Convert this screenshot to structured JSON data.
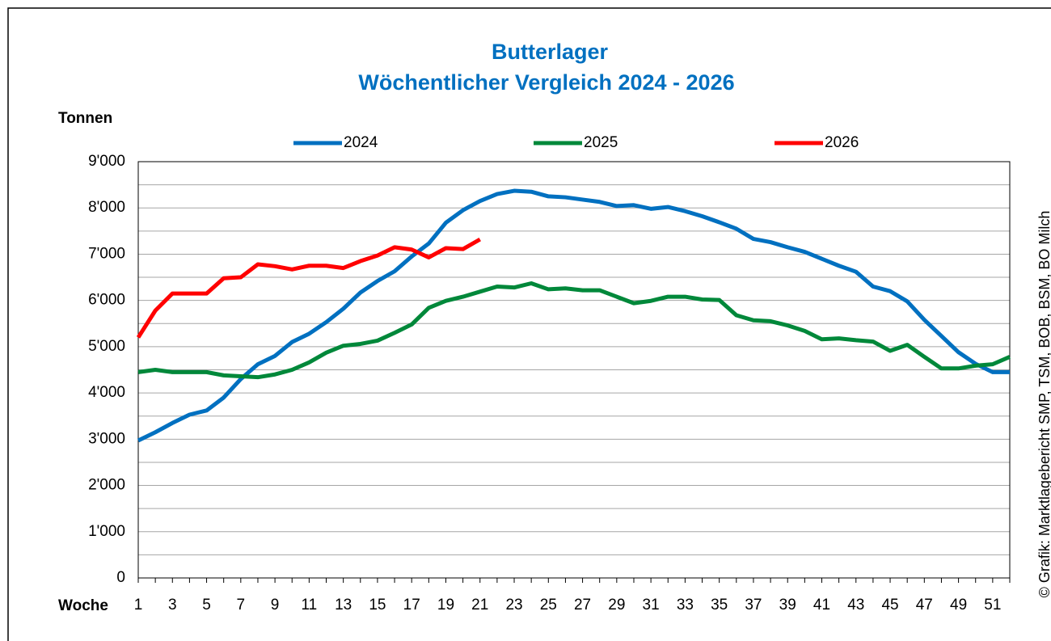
{
  "chart_data": {
    "type": "line",
    "title": "Butterlager",
    "subtitle": "Wöchentlicher Vergleich 2024 - 2026",
    "y_label": "Tonnen",
    "x_label": "Woche",
    "source": "© Grafik: Marktlagebericht SMP, TSM, BOB, BSM, BO Milch",
    "x": [
      1,
      2,
      3,
      4,
      5,
      6,
      7,
      8,
      9,
      10,
      11,
      12,
      13,
      14,
      15,
      16,
      17,
      18,
      19,
      20,
      21,
      22,
      23,
      24,
      25,
      26,
      27,
      28,
      29,
      30,
      31,
      32,
      33,
      34,
      35,
      36,
      37,
      38,
      39,
      40,
      41,
      42,
      43,
      44,
      45,
      46,
      47,
      48,
      49,
      50,
      51,
      52
    ],
    "xlim": [
      1,
      52
    ],
    "xticks": [
      1,
      3,
      5,
      7,
      9,
      11,
      13,
      15,
      17,
      19,
      21,
      23,
      25,
      27,
      29,
      31,
      33,
      35,
      37,
      39,
      41,
      43,
      45,
      47,
      49,
      51
    ],
    "ylim": [
      0,
      9000
    ],
    "yticks": [
      0,
      {
        "value": 1000,
        "label": "1'000"
      },
      {
        "value": 2000,
        "label": "2'000"
      },
      {
        "value": 3000,
        "label": "3'000"
      },
      {
        "value": 4000,
        "label": "4'000"
      },
      {
        "value": 5000,
        "label": "5'000"
      },
      {
        "value": 6000,
        "label": "6'000"
      },
      {
        "value": 7000,
        "label": "7'000"
      },
      {
        "value": 8000,
        "label": "8'000"
      },
      {
        "value": 9000,
        "label": "9'000"
      }
    ],
    "minor_yticks": [
      500,
      1500,
      2500,
      3500,
      4500,
      5500,
      6500,
      7500,
      8500
    ],
    "grid": true,
    "legend": "top",
    "series": [
      {
        "name": "2024",
        "color": "#0070c0",
        "values": [
          2970,
          3150,
          3350,
          3530,
          3620,
          3900,
          4300,
          4620,
          4800,
          5100,
          5280,
          5530,
          5820,
          6170,
          6420,
          6630,
          6950,
          7230,
          7680,
          7950,
          8150,
          8300,
          8370,
          8350,
          8250,
          8230,
          8180,
          8130,
          8040,
          8060,
          7980,
          8020,
          7930,
          7820,
          7690,
          7550,
          7330,
          7260,
          7150,
          7050,
          6900,
          6750,
          6620,
          6300,
          6200,
          5980,
          5580,
          5230,
          4880,
          4630,
          4450,
          4450
        ]
      },
      {
        "name": "2025",
        "color": "#00883a",
        "values": [
          4450,
          4500,
          4450,
          4450,
          4450,
          4380,
          4360,
          4340,
          4400,
          4500,
          4660,
          4870,
          5020,
          5060,
          5130,
          5300,
          5480,
          5840,
          5990,
          6080,
          6190,
          6300,
          6280,
          6370,
          6240,
          6260,
          6220,
          6220,
          6080,
          5940,
          5990,
          6080,
          6080,
          6020,
          6010,
          5680,
          5570,
          5550,
          5460,
          5340,
          5160,
          5180,
          5140,
          5110,
          4910,
          5040,
          4780,
          4530,
          4530,
          4590,
          4620,
          4780
        ]
      },
      {
        "name": "2026",
        "color": "#ff0000",
        "values": [
          5200,
          5780,
          6150,
          6150,
          6150,
          6480,
          6500,
          6780,
          6740,
          6670,
          6750,
          6750,
          6700,
          6850,
          6970,
          7150,
          7100,
          6930,
          7130,
          7110,
          7320,
          null,
          null,
          null,
          null,
          null,
          null,
          null,
          null,
          null,
          null,
          null,
          null,
          null,
          null,
          null,
          null,
          null,
          null,
          null,
          null,
          null,
          null,
          null,
          null,
          null,
          null,
          null,
          null,
          null,
          null,
          null
        ]
      }
    ]
  }
}
